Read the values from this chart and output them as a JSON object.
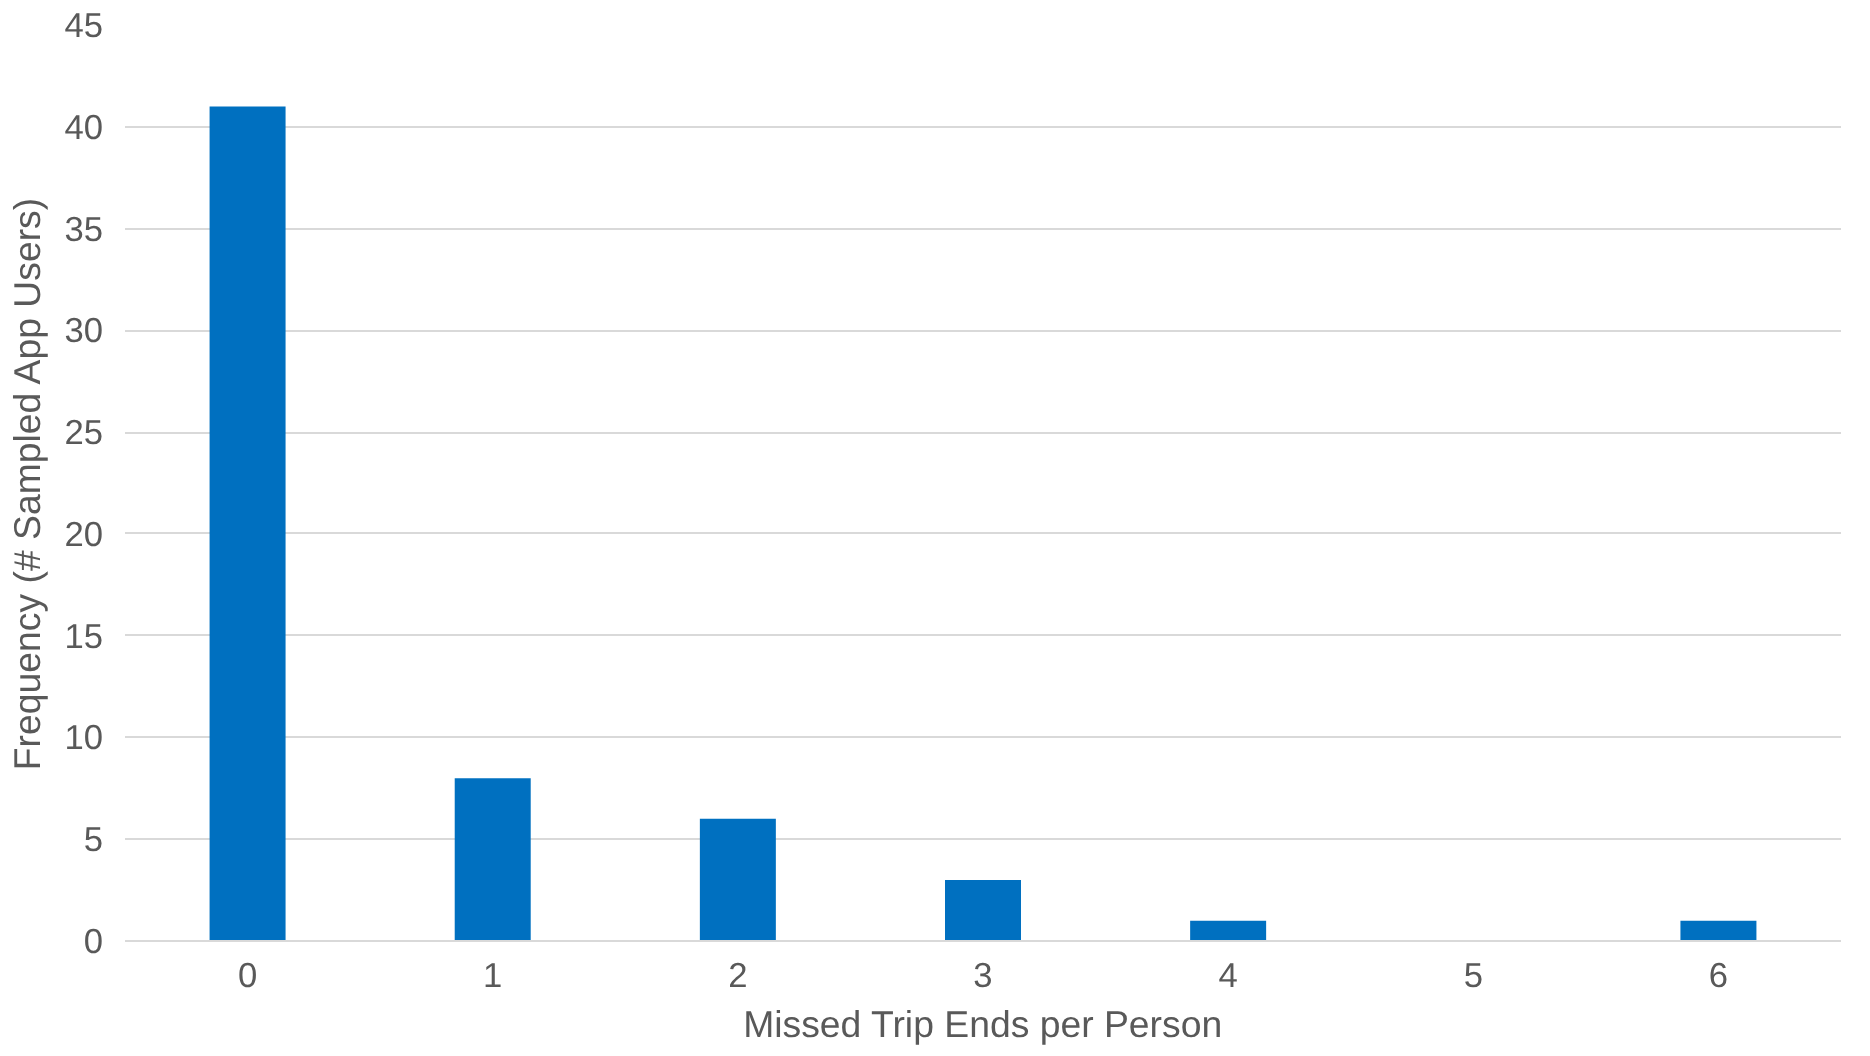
{
  "chart_data": {
    "type": "bar",
    "xlabel": "Missed Trip Ends per Person",
    "ylabel": "Frequency (# Sampled App Users)",
    "categories": [
      "0",
      "1",
      "2",
      "3",
      "4",
      "5",
      "6"
    ],
    "values": [
      41,
      8,
      6,
      3,
      1,
      0,
      1
    ],
    "color": "#0070c0",
    "ylim": [
      0,
      45
    ],
    "yticks": [
      0,
      5,
      10,
      15,
      20,
      25,
      30,
      35,
      40,
      45
    ],
    "grid": "y"
  }
}
